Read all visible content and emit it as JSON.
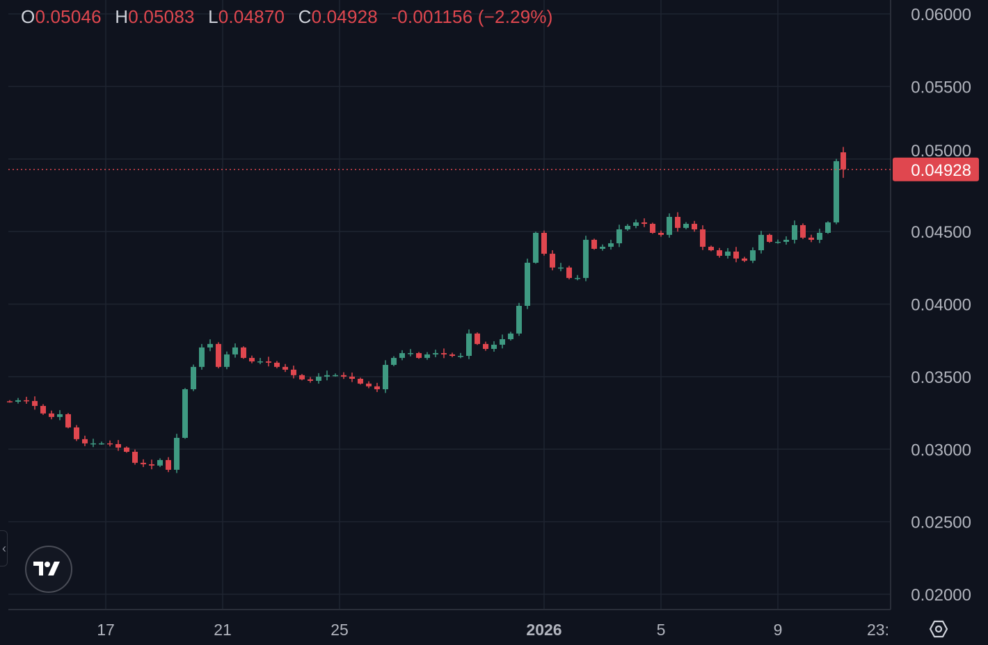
{
  "legend": {
    "open_label": "O",
    "open": "0.05046",
    "high_label": "H",
    "high": "0.05083",
    "low_label": "L",
    "low": "0.04870",
    "close_label": "C",
    "close": "0.04928",
    "change": "-0.001156 (−2.29%)"
  },
  "collapse_icon": "‹",
  "chart_data": {
    "type": "candlestick",
    "title": "",
    "ylim": [
      0.02,
      0.06
    ],
    "y_ticks": [
      "0.06000",
      "0.05500",
      "0.05000",
      "0.04500",
      "0.04000",
      "0.03500",
      "0.03000",
      "0.02500",
      "0.02000"
    ],
    "x_ticks": [
      {
        "label": "17",
        "bold": false
      },
      {
        "label": "21",
        "bold": false
      },
      {
        "label": "25",
        "bold": false
      },
      {
        "label": "2026",
        "bold": true
      },
      {
        "label": "5",
        "bold": false
      },
      {
        "label": "9",
        "bold": false
      },
      {
        "label": "23:",
        "bold": false
      }
    ],
    "last_price": "0.04928",
    "first_open": 0.0333,
    "closes": [
      0.03327,
      0.03337,
      0.03332,
      0.03298,
      0.03246,
      0.03222,
      0.03241,
      0.0315,
      0.03069,
      0.0304,
      0.0304,
      0.0304,
      0.03035,
      0.03011,
      0.02982,
      0.02906,
      0.02896,
      0.02887,
      0.02925,
      0.02858,
      0.03078,
      0.03413,
      0.03567,
      0.03701,
      0.03725,
      0.03567,
      0.03653,
      0.03701,
      0.03629,
      0.03605,
      0.03605,
      0.03596,
      0.03567,
      0.03548,
      0.0351,
      0.03481,
      0.03471,
      0.035,
      0.0351,
      0.0351,
      0.035,
      0.03485,
      0.03452,
      0.03433,
      0.03413,
      0.03581,
      0.03629,
      0.03662,
      0.03662,
      0.03629,
      0.03653,
      0.03662,
      0.03653,
      0.03643,
      0.03643,
      0.03797,
      0.03725,
      0.03691,
      0.0372,
      0.03758,
      0.03797,
      0.03988,
      0.04285,
      0.04491,
      0.04347,
      0.04252,
      0.04252,
      0.0418,
      0.0418,
      0.04443,
      0.04381,
      0.04395,
      0.04419,
      0.04515,
      0.04539,
      0.04563,
      0.04553,
      0.04491,
      0.04477,
      0.04601,
      0.04525,
      0.04553,
      0.04515,
      0.04395,
      0.04371,
      0.04333,
      0.04362,
      0.04314,
      0.04299,
      0.04371,
      0.04477,
      0.04429,
      0.04429,
      0.04443,
      0.04544,
      0.04458,
      0.04443,
      0.04491,
      0.04563,
      0.04985
    ],
    "last_candle": {
      "open": 0.05046,
      "high": 0.05083,
      "low": 0.0487,
      "close": 0.04928
    },
    "colors": {
      "up": "#3f9a82",
      "down": "#e0474f",
      "grid": "#1f2430",
      "text": "#b2b5be",
      "background": "#0f131e"
    }
  }
}
